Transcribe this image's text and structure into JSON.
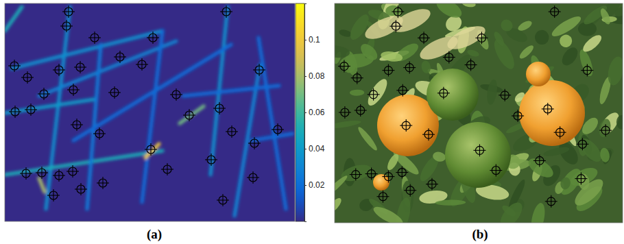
{
  "chart_data": [
    {
      "type": "heatmap",
      "title": "(a)",
      "xlim": [
        0,
        423
      ],
      "ylim": [
        0,
        318
      ],
      "tick_labels": false,
      "marker": "crosshair",
      "colorbar": {
        "range": [
          0,
          0.12
        ],
        "ticks": [
          0.02,
          0.04,
          0.06,
          0.08,
          0.1
        ]
      },
      "streaks": [
        {
          "x": [
            95,
            60
          ],
          "y": [
            5,
            300
          ],
          "value": 0.035
        },
        {
          "x": [
            0,
            130
          ],
          "y": [
            160,
            140
          ],
          "value": 0.04
        },
        {
          "x": [
            0,
            230
          ],
          "y": [
            250,
            215
          ],
          "value": 0.05
        },
        {
          "x": [
            50,
            250
          ],
          "y": [
            135,
            55
          ],
          "value": 0.03
        },
        {
          "x": [
            10,
            230
          ],
          "y": [
            95,
            40
          ],
          "value": 0.035
        },
        {
          "x": [
            325,
            300
          ],
          "y": [
            5,
            250
          ],
          "value": 0.035
        },
        {
          "x": [
            372,
            335
          ],
          "y": [
            90,
            310
          ],
          "value": 0.03
        },
        {
          "x": [
            0,
            25
          ],
          "y": [
            40,
            5
          ],
          "value": 0.05
        },
        {
          "x": [
            140,
            120
          ],
          "y": [
            60,
            300
          ],
          "value": 0.025
        },
        {
          "x": [
            230,
            200
          ],
          "y": [
            40,
            290
          ],
          "value": 0.02
        },
        {
          "x": [
            360,
            420
          ],
          "y": [
            200,
            190
          ],
          "value": 0.02
        },
        {
          "x": [
            370,
            410
          ],
          "y": [
            50,
            300
          ],
          "value": 0.02
        },
        {
          "x": [
            100,
            330
          ],
          "y": [
            200,
            60
          ],
          "value": 0.02
        },
        {
          "x": [
            260,
            400
          ],
          "y": [
            135,
            120
          ],
          "value": 0.02
        },
        {
          "x": [
            255,
            290
          ],
          "y": [
            175,
            150
          ],
          "value": 0.07
        },
        {
          "x": [
            50,
            58
          ],
          "y": [
            255,
            275
          ],
          "value": 0.08
        },
        {
          "x": [
            205,
            225
          ],
          "y": [
            225,
            205
          ],
          "value": 0.1
        }
      ],
      "points": {
        "x": [
          93,
          323,
          90,
          131,
          216,
          14,
          33,
          79,
          110,
          168,
          200,
          371,
          57,
          100,
          160,
          250,
          15,
          38,
          269,
          313,
          105,
          138,
          331,
          398,
          213,
          364,
          301,
          237,
          31,
          54,
          79,
          99,
          143,
          111,
          362,
          71,
          318
        ],
        "y": [
          12,
          12,
          33,
          50,
          50,
          91,
          108,
          97,
          93,
          78,
          89,
          97,
          132,
          126,
          130,
          133,
          158,
          155,
          163,
          153,
          177,
          190,
          187,
          184,
          213,
          204,
          228,
          242,
          248,
          247,
          251,
          245,
          262,
          271,
          254,
          280,
          287
        ]
      }
    },
    {
      "type": "image",
      "title": "(b)",
      "xlim": [
        0,
        423
      ],
      "ylim": [
        0,
        318
      ],
      "tick_labels": false,
      "marker": "crosshair",
      "points": {
        "x": [
          93,
          323,
          90,
          131,
          216,
          14,
          33,
          79,
          110,
          168,
          200,
          371,
          57,
          100,
          160,
          250,
          15,
          38,
          269,
          313,
          105,
          138,
          331,
          398,
          213,
          364,
          301,
          237,
          31,
          54,
          79,
          99,
          143,
          111,
          362,
          71,
          318
        ],
        "y": [
          12,
          12,
          33,
          50,
          50,
          91,
          108,
          97,
          93,
          78,
          89,
          97,
          132,
          126,
          130,
          133,
          158,
          155,
          163,
          153,
          177,
          190,
          187,
          184,
          213,
          204,
          228,
          242,
          248,
          247,
          251,
          245,
          262,
          271,
          254,
          280,
          287
        ]
      }
    }
  ]
}
